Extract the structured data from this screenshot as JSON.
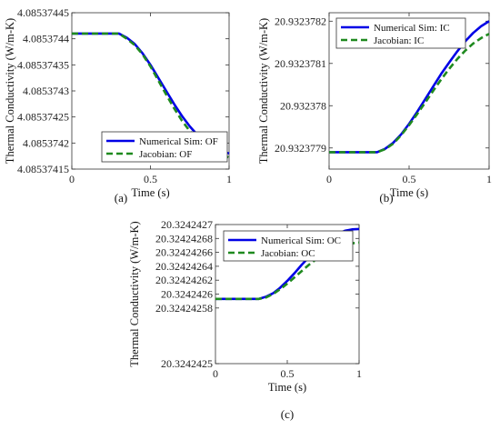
{
  "chart_data": [
    {
      "type": "line",
      "panel_label": "(a)",
      "xlabel": "Time (s)",
      "ylabel": "Thermal Conductivity (W/m-K)",
      "xlim": [
        0,
        1
      ],
      "ylim": [
        4.08537415,
        4.08537445
      ],
      "x_ticks": [
        "0",
        "0.5",
        "1"
      ],
      "y_ticks": [
        "4.08537415",
        "4.0853742",
        "4.08537425",
        "4.0853743",
        "4.08537435",
        "4.0853744",
        "4.08537445"
      ],
      "legend_position": "bottom-right",
      "series": [
        {
          "name": "Numerical Sim: OF",
          "color": "#0000e6",
          "style": "solid",
          "x": [
            0,
            0.1,
            0.2,
            0.3,
            0.35,
            0.4,
            0.45,
            0.5,
            0.55,
            0.6,
            0.65,
            0.7,
            0.75,
            0.8,
            0.85,
            0.9,
            0.95,
            1.0
          ],
          "y": [
            4.08537441,
            4.08537441,
            4.08537441,
            4.08537441,
            4.085374402,
            4.08537439,
            4.085374372,
            4.08537435,
            4.085374325,
            4.0853743,
            4.085374275,
            4.085374252,
            4.085374232,
            4.085374215,
            4.085374202,
            4.085374192,
            4.085374185,
            4.08537418
          ]
        },
        {
          "name": "Jacobian: OF",
          "color": "#1f8a1f",
          "style": "dashed",
          "x": [
            0,
            0.1,
            0.2,
            0.3,
            0.35,
            0.4,
            0.45,
            0.5,
            0.55,
            0.6,
            0.65,
            0.7,
            0.75,
            0.8,
            0.85,
            0.9,
            0.95,
            1.0
          ],
          "y": [
            4.08537441,
            4.08537441,
            4.08537441,
            4.08537441,
            4.0853744,
            4.085374388,
            4.08537437,
            4.085374347,
            4.08537432,
            4.085374293,
            4.085374267,
            4.085374243,
            4.085374223,
            4.085374207,
            4.085374194,
            4.085374185,
            4.085374178,
            4.085374172
          ]
        }
      ]
    },
    {
      "type": "line",
      "panel_label": "(b)",
      "xlabel": "Time (s)",
      "ylabel": "Thermal Conductivity (W/m-K)",
      "xlim": [
        0,
        1
      ],
      "ylim": [
        20.93237785,
        20.93237822
      ],
      "x_ticks": [
        "0",
        "0.5",
        "1"
      ],
      "y_ticks": [
        "20.9323779",
        "20.932378",
        "20.9323781",
        "20.9323782"
      ],
      "y_tick_values": [
        20.9323779,
        20.932378,
        20.9323781,
        20.9323782
      ],
      "legend_position": "top-left",
      "series": [
        {
          "name": "Numerical Sim: IC",
          "color": "#0000e6",
          "style": "solid",
          "x": [
            0,
            0.1,
            0.2,
            0.3,
            0.35,
            0.4,
            0.45,
            0.5,
            0.55,
            0.6,
            0.65,
            0.7,
            0.75,
            0.8,
            0.85,
            0.9,
            0.95,
            1.0
          ],
          "y": [
            20.93237789,
            20.93237789,
            20.93237789,
            20.93237789,
            20.932377898,
            20.932377912,
            20.932377932,
            20.932377957,
            20.932377985,
            20.932378015,
            20.932378045,
            20.932378075,
            20.932378102,
            20.932378128,
            20.932378152,
            20.932378172,
            20.932378188,
            20.9323782
          ]
        },
        {
          "name": "Jacobian: IC",
          "color": "#1f8a1f",
          "style": "dashed",
          "x": [
            0,
            0.1,
            0.2,
            0.3,
            0.35,
            0.4,
            0.45,
            0.5,
            0.55,
            0.6,
            0.65,
            0.7,
            0.75,
            0.8,
            0.85,
            0.9,
            0.95,
            1.0
          ],
          "y": [
            20.93237789,
            20.93237789,
            20.93237789,
            20.93237789,
            20.932377897,
            20.93237791,
            20.93237793,
            20.932377954,
            20.93237798,
            20.932378007,
            20.932378035,
            20.932378062,
            20.932378087,
            20.93237811,
            20.93237813,
            20.932378147,
            20.93237816,
            20.93237817
          ]
        }
      ]
    },
    {
      "type": "line",
      "panel_label": "(c)",
      "xlabel": "Time (s)",
      "ylabel": "Thermal Conductivity (W/m-K)",
      "xlim": [
        0,
        1
      ],
      "ylim": [
        20.3242425,
        20.3242427
      ],
      "x_ticks": [
        "0",
        "0.5",
        "1"
      ],
      "y_ticks": [
        "20.3242425",
        "20.32424258",
        "20.3242426",
        "20.32424262",
        "20.32424264",
        "20.32424266",
        "20.32424268",
        "20.3242427"
      ],
      "y_tick_values": [
        20.3242425,
        20.32424258,
        20.3242426,
        20.32424262,
        20.32424264,
        20.32424266,
        20.32424268,
        20.3242427
      ],
      "legend_position": "top-left",
      "series": [
        {
          "name": "Numerical Sim: OC",
          "color": "#0000e6",
          "style": "solid",
          "x": [
            0,
            0.1,
            0.2,
            0.3,
            0.35,
            0.4,
            0.45,
            0.5,
            0.55,
            0.6,
            0.65,
            0.7,
            0.75,
            0.8,
            0.85,
            0.9,
            0.95,
            1.0
          ],
          "y": [
            20.324242593,
            20.324242593,
            20.324242593,
            20.324242593,
            20.324242596,
            20.324242601,
            20.324242609,
            20.324242619,
            20.32424263,
            20.324242642,
            20.324242653,
            20.324242663,
            20.324242672,
            20.32424268,
            20.324242686,
            20.324242691,
            20.324242693,
            20.3242426935
          ]
        },
        {
          "name": "Jacobian: OC",
          "color": "#1f8a1f",
          "style": "dashed",
          "x": [
            0,
            0.1,
            0.2,
            0.3,
            0.35,
            0.4,
            0.45,
            0.5,
            0.55,
            0.6,
            0.65,
            0.7,
            0.75,
            0.8,
            0.85,
            0.9,
            0.95,
            1.0
          ],
          "y": [
            20.324242593,
            20.324242593,
            20.324242593,
            20.324242593,
            20.324242595,
            20.3242426,
            20.324242607,
            20.324242615,
            20.324242624,
            20.324242633,
            20.324242642,
            20.32424265,
            20.324242657,
            20.324242663,
            20.324242668,
            20.324242671,
            20.324242673,
            20.324242674
          ]
        }
      ]
    }
  ]
}
